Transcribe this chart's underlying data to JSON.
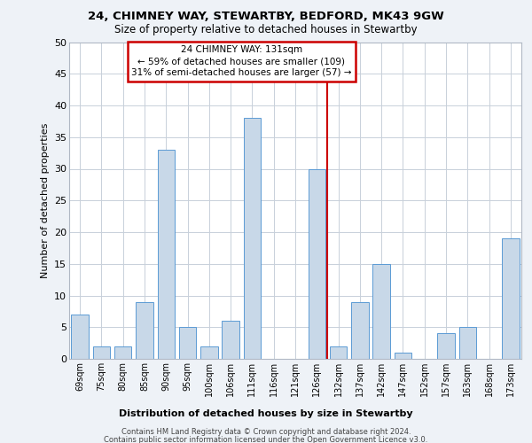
{
  "title": "24, CHIMNEY WAY, STEWARTBY, BEDFORD, MK43 9GW",
  "subtitle": "Size of property relative to detached houses in Stewartby",
  "xlabel": "Distribution of detached houses by size in Stewartby",
  "ylabel": "Number of detached properties",
  "categories": [
    "69sqm",
    "75sqm",
    "80sqm",
    "85sqm",
    "90sqm",
    "95sqm",
    "100sqm",
    "106sqm",
    "111sqm",
    "116sqm",
    "121sqm",
    "126sqm",
    "132sqm",
    "137sqm",
    "142sqm",
    "147sqm",
    "152sqm",
    "157sqm",
    "163sqm",
    "168sqm",
    "173sqm"
  ],
  "values": [
    7,
    2,
    2,
    9,
    33,
    5,
    2,
    6,
    38,
    0,
    0,
    30,
    2,
    9,
    15,
    1,
    0,
    4,
    5,
    0,
    19
  ],
  "bar_color": "#c8d8e8",
  "bar_edge_color": "#5b9bd5",
  "vline_x": 12,
  "vline_color": "#cc0000",
  "annotation_title": "24 CHIMNEY WAY: 131sqm",
  "annotation_line1": "← 59% of detached houses are smaller (109)",
  "annotation_line2": "31% of semi-detached houses are larger (57) →",
  "annotation_box_color": "#cc0000",
  "ylim": [
    0,
    50
  ],
  "yticks": [
    0,
    5,
    10,
    15,
    20,
    25,
    30,
    35,
    40,
    45,
    50
  ],
  "footer1": "Contains HM Land Registry data © Crown copyright and database right 2024.",
  "footer2": "Contains public sector information licensed under the Open Government Licence v3.0.",
  "bg_color": "#eef2f7",
  "plot_bg_color": "#ffffff",
  "grid_color": "#c8d0da"
}
